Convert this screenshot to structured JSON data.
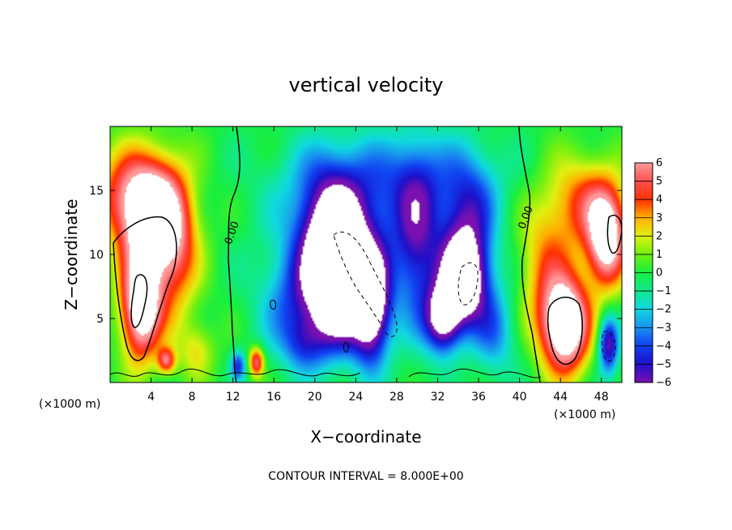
{
  "chart_data": {
    "type": "heatmap",
    "title": "vertical velocity",
    "xlabel": "X−coordinate",
    "ylabel": "Z−coordinate",
    "x_scale_note": "(×1000 m)",
    "z_scale_note": "(×1000 m)",
    "footer": "CONTOUR INTERVAL = 8.000E+00",
    "xlim": [
      0,
      50
    ],
    "ylim": [
      0,
      20
    ],
    "x_ticks": [
      4,
      8,
      12,
      16,
      20,
      24,
      28,
      32,
      36,
      40,
      44,
      48
    ],
    "y_ticks": [
      5,
      10,
      15
    ],
    "x_tick_labels": [
      "4",
      "8",
      "12",
      "16",
      "20",
      "24",
      "28",
      "32",
      "36",
      "40",
      "44",
      "48"
    ],
    "y_tick_labels": [
      "5",
      "10",
      "15"
    ],
    "colorbar": {
      "min": -6,
      "max": 6,
      "labels": [
        "6",
        "5",
        "4",
        "3",
        "2",
        "1",
        "0",
        "−1",
        "−2",
        "−3",
        "−4",
        "−5",
        "−6"
      ],
      "stops": [
        {
          "v": -6,
          "color": "#7a10b0"
        },
        {
          "v": -5,
          "color": "#1e10c8"
        },
        {
          "v": -4,
          "color": "#1040f0"
        },
        {
          "v": -3,
          "color": "#1a90f0"
        },
        {
          "v": -2,
          "color": "#10d8e0"
        },
        {
          "v": -1,
          "color": "#10e890"
        },
        {
          "v": 0,
          "color": "#18ee40"
        },
        {
          "v": 1,
          "color": "#70f010"
        },
        {
          "v": 2,
          "color": "#e0f010"
        },
        {
          "v": 3,
          "color": "#ffb000"
        },
        {
          "v": 4,
          "color": "#ff3000"
        },
        {
          "v": 5,
          "color": "#ff5050"
        },
        {
          "v": 6,
          "color": "#ff9a9a"
        }
      ]
    },
    "grid": false,
    "contour_labels": [
      {
        "text": "0.00",
        "x": 12.2,
        "z": 11.6
      },
      {
        "text": "0.00",
        "x": 40.9,
        "z": 12.8
      }
    ],
    "features": [
      {
        "x": 4,
        "z": 13,
        "amp": 9,
        "sx": 2.2,
        "sz": 2.8
      },
      {
        "x": 3,
        "z": 6,
        "amp": 9,
        "sx": 1.3,
        "sz": 2.8
      },
      {
        "x": 1.5,
        "z": 15,
        "amp": 3,
        "sx": 2.5,
        "sz": 2.5
      },
      {
        "x": 6,
        "z": 10,
        "amp": 4,
        "sx": 1.8,
        "sz": 4
      },
      {
        "x": 5.5,
        "z": 1.7,
        "amp": 5,
        "sx": 0.6,
        "sz": 0.7
      },
      {
        "x": 8.5,
        "z": 2.5,
        "amp": 2,
        "sx": 1.2,
        "sz": 1.5
      },
      {
        "x": 14.3,
        "z": 1.6,
        "amp": 5.5,
        "sx": 0.5,
        "sz": 0.8
      },
      {
        "x": 12.5,
        "z": 1.3,
        "amp": -4,
        "sx": 0.5,
        "sz": 0.8
      },
      {
        "x": 22.5,
        "z": 8.5,
        "amp": -10,
        "sx": 1.7,
        "sz": 3.5
      },
      {
        "x": 25.5,
        "z": 6,
        "amp": -9,
        "sx": 1.3,
        "sz": 3
      },
      {
        "x": 21,
        "z": 10,
        "amp": -5,
        "sx": 2,
        "sz": 4
      },
      {
        "x": 24,
        "z": 12,
        "amp": -3,
        "sx": 5,
        "sz": 4
      },
      {
        "x": 34.5,
        "z": 8,
        "amp": -9,
        "sx": 1.6,
        "sz": 2.5
      },
      {
        "x": 32.5,
        "z": 5,
        "amp": -7,
        "sx": 1.2,
        "sz": 1.8
      },
      {
        "x": 35,
        "z": 13,
        "amp": -4,
        "sx": 2,
        "sz": 3.5
      },
      {
        "x": 30,
        "z": 11,
        "amp": -4,
        "sx": 1.5,
        "sz": 5
      },
      {
        "x": 18,
        "z": 6,
        "amp": -3,
        "sx": 2.5,
        "sz": 3
      },
      {
        "x": 19,
        "z": 3,
        "amp": -2.5,
        "sx": 1.5,
        "sz": 1.5
      },
      {
        "x": 37.5,
        "z": 4,
        "amp": -3,
        "sx": 1.5,
        "sz": 2.5
      },
      {
        "x": 27,
        "z": 16,
        "amp": -2,
        "sx": 7,
        "sz": 2.5
      },
      {
        "x": 44.5,
        "z": 4.5,
        "amp": 10,
        "sx": 1.6,
        "sz": 2.5
      },
      {
        "x": 48.5,
        "z": 11,
        "amp": 8,
        "sx": 1.3,
        "sz": 2.5
      },
      {
        "x": 46.5,
        "z": 14,
        "amp": 4,
        "sx": 2.5,
        "sz": 2.5
      },
      {
        "x": 42.5,
        "z": 9,
        "amp": 3,
        "sx": 1.8,
        "sz": 3.5
      },
      {
        "x": 48.7,
        "z": 3,
        "amp": -6,
        "sx": 0.7,
        "sz": 1.6
      }
    ]
  }
}
